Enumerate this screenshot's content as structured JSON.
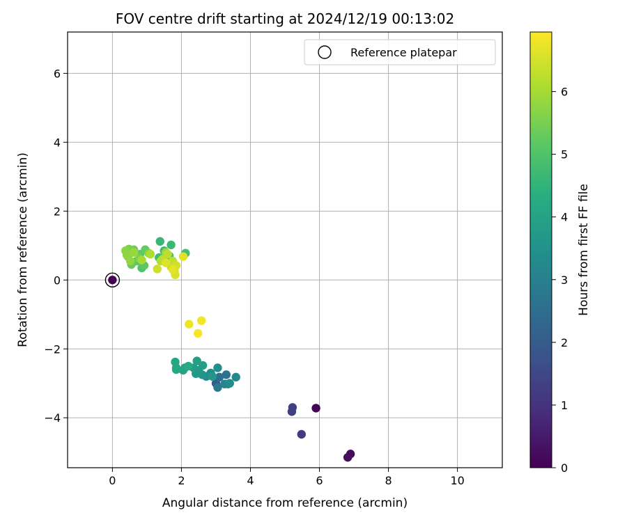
{
  "chart_data": {
    "type": "scatter",
    "title": "FOV centre drift starting at 2024/12/19 00:13:02",
    "xlabel": "Angular distance from reference (arcmin)",
    "ylabel": "Rotation from reference (arcmin)",
    "xlim": [
      -1.3,
      11.3
    ],
    "ylim": [
      -5.45,
      7.2
    ],
    "xticks": [
      "0",
      "2",
      "4",
      "6",
      "8",
      "10"
    ],
    "yticks": [
      "−4",
      "−2",
      "0",
      "2",
      "4",
      "6"
    ],
    "grid": true,
    "legend": {
      "placement": "top-right",
      "label": "Reference platepar"
    },
    "reference": {
      "x": 0,
      "y": 0
    },
    "colorbar": {
      "label": "Hours from first FF file",
      "colormap": "viridis",
      "range": [
        0,
        6.95
      ],
      "ticks": [
        "0",
        "1",
        "2",
        "3",
        "4",
        "5",
        "6"
      ]
    },
    "points": [
      {
        "x": 0.0,
        "y": 0.0,
        "c": 0.0
      },
      {
        "x": 5.9,
        "y": -3.72,
        "c": 0.05
      },
      {
        "x": 6.9,
        "y": -5.05,
        "c": 0.2
      },
      {
        "x": 6.82,
        "y": -5.15,
        "c": 0.25
      },
      {
        "x": 5.22,
        "y": -3.7,
        "c": 1.35
      },
      {
        "x": 5.2,
        "y": -3.82,
        "c": 1.3
      },
      {
        "x": 5.48,
        "y": -4.48,
        "c": 1.2
      },
      {
        "x": 3.0,
        "y": -3.0,
        "c": 2.0
      },
      {
        "x": 3.1,
        "y": -2.82,
        "c": 2.5
      },
      {
        "x": 3.3,
        "y": -2.75,
        "c": 2.6
      },
      {
        "x": 3.05,
        "y": -3.12,
        "c": 2.8
      },
      {
        "x": 3.35,
        "y": -3.02,
        "c": 3.0
      },
      {
        "x": 3.25,
        "y": -3.02,
        "c": 3.1
      },
      {
        "x": 3.58,
        "y": -2.82,
        "c": 3.2
      },
      {
        "x": 3.4,
        "y": -3.0,
        "c": 3.3
      },
      {
        "x": 2.72,
        "y": -2.8,
        "c": 3.35
      },
      {
        "x": 2.85,
        "y": -2.7,
        "c": 3.4
      },
      {
        "x": 3.05,
        "y": -2.55,
        "c": 3.45
      },
      {
        "x": 2.6,
        "y": -2.75,
        "c": 3.6
      },
      {
        "x": 2.9,
        "y": -2.8,
        "c": 3.65
      },
      {
        "x": 2.42,
        "y": -2.72,
        "c": 3.7
      },
      {
        "x": 2.5,
        "y": -2.62,
        "c": 3.75
      },
      {
        "x": 2.35,
        "y": -2.55,
        "c": 3.8
      },
      {
        "x": 2.62,
        "y": -2.48,
        "c": 3.85
      },
      {
        "x": 2.45,
        "y": -2.35,
        "c": 3.9
      },
      {
        "x": 2.1,
        "y": -2.55,
        "c": 3.95
      },
      {
        "x": 2.05,
        "y": -2.62,
        "c": 4.0
      },
      {
        "x": 1.85,
        "y": -2.55,
        "c": 4.05
      },
      {
        "x": 1.82,
        "y": -2.38,
        "c": 4.1
      },
      {
        "x": 1.85,
        "y": -2.6,
        "c": 4.15
      },
      {
        "x": 2.2,
        "y": -2.5,
        "c": 4.2
      },
      {
        "x": 1.38,
        "y": 1.12,
        "c": 4.6
      },
      {
        "x": 1.7,
        "y": 1.02,
        "c": 4.65
      },
      {
        "x": 1.5,
        "y": 0.85,
        "c": 4.7
      },
      {
        "x": 1.35,
        "y": 0.65,
        "c": 4.75
      },
      {
        "x": 1.65,
        "y": 0.7,
        "c": 4.8
      },
      {
        "x": 2.12,
        "y": 0.78,
        "c": 4.85
      },
      {
        "x": 0.85,
        "y": 0.35,
        "c": 5.0
      },
      {
        "x": 0.7,
        "y": 0.55,
        "c": 5.1
      },
      {
        "x": 0.92,
        "y": 0.42,
        "c": 5.15
      },
      {
        "x": 0.8,
        "y": 0.75,
        "c": 5.2
      },
      {
        "x": 0.95,
        "y": 0.88,
        "c": 5.25
      },
      {
        "x": 0.55,
        "y": 0.45,
        "c": 5.3
      },
      {
        "x": 0.45,
        "y": 0.68,
        "c": 5.4
      },
      {
        "x": 0.62,
        "y": 0.88,
        "c": 5.45
      },
      {
        "x": 0.48,
        "y": 0.9,
        "c": 5.5
      },
      {
        "x": 0.78,
        "y": 0.62,
        "c": 5.55
      },
      {
        "x": 1.05,
        "y": 0.78,
        "c": 5.6
      },
      {
        "x": 0.38,
        "y": 0.85,
        "c": 5.7
      },
      {
        "x": 0.42,
        "y": 0.72,
        "c": 5.75
      },
      {
        "x": 0.52,
        "y": 0.55,
        "c": 5.8
      },
      {
        "x": 0.62,
        "y": 0.8,
        "c": 5.85
      },
      {
        "x": 1.55,
        "y": 0.8,
        "c": 5.9
      },
      {
        "x": 0.85,
        "y": 0.58,
        "c": 6.0
      },
      {
        "x": 1.1,
        "y": 0.75,
        "c": 6.1
      },
      {
        "x": 1.4,
        "y": 0.55,
        "c": 6.15
      },
      {
        "x": 1.45,
        "y": 0.6,
        "c": 6.2
      },
      {
        "x": 1.6,
        "y": 0.75,
        "c": 6.25
      },
      {
        "x": 1.75,
        "y": 0.55,
        "c": 6.3
      },
      {
        "x": 1.7,
        "y": 0.38,
        "c": 6.35
      },
      {
        "x": 1.3,
        "y": 0.32,
        "c": 6.4
      },
      {
        "x": 1.85,
        "y": 0.42,
        "c": 6.45
      },
      {
        "x": 1.8,
        "y": 0.25,
        "c": 6.5
      },
      {
        "x": 1.82,
        "y": 0.15,
        "c": 6.55
      },
      {
        "x": 1.55,
        "y": 0.5,
        "c": 6.6
      },
      {
        "x": 2.05,
        "y": 0.68,
        "c": 6.65
      },
      {
        "x": 1.75,
        "y": 0.3,
        "c": 6.7
      },
      {
        "x": 2.22,
        "y": -1.28,
        "c": 6.8
      },
      {
        "x": 2.58,
        "y": -1.18,
        "c": 6.85
      },
      {
        "x": 2.48,
        "y": -1.55,
        "c": 6.9
      }
    ]
  }
}
